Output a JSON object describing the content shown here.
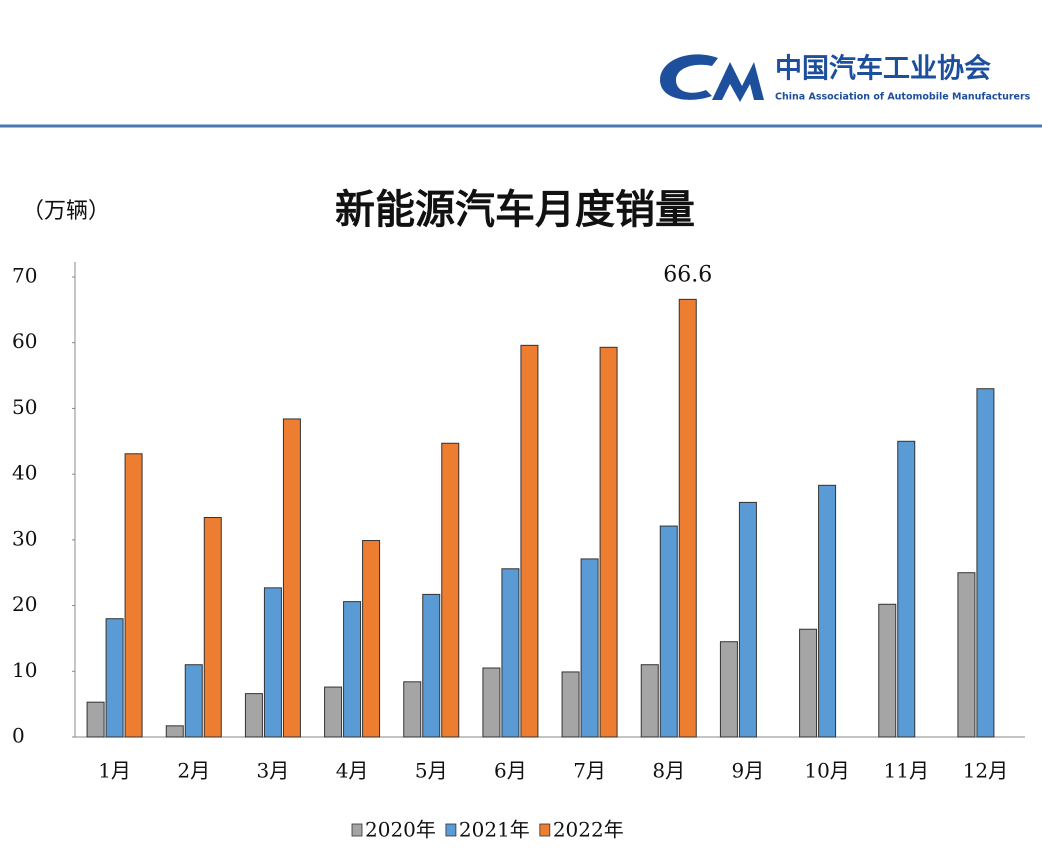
{
  "header": {
    "org_name": "中国汽车工业协会",
    "org_name_en": "China Association of Automobile Manufacturers"
  },
  "chart_data": {
    "type": "bar",
    "title": "新能源汽车月度销量",
    "y_label": "（万辆）",
    "categories": [
      "1月",
      "2月",
      "3月",
      "4月",
      "5月",
      "6月",
      "7月",
      "8月",
      "9月",
      "10月",
      "11月",
      "12月"
    ],
    "series": [
      {
        "name": "2020年",
        "color": "#a5a5a5",
        "values": [
          5.3,
          1.7,
          6.6,
          7.6,
          8.4,
          10.5,
          9.9,
          11,
          14.5,
          16.4,
          20.2,
          25
        ]
      },
      {
        "name": "2021年",
        "color": "#5b9bd5",
        "values": [
          18,
          11,
          22.7,
          20.6,
          21.7,
          25.6,
          27.1,
          32.1,
          35.7,
          38.3,
          45,
          53
        ]
      },
      {
        "name": "2022年",
        "color": "#ed7d31",
        "values": [
          43.1,
          33.4,
          48.4,
          29.9,
          44.7,
          59.6,
          59.3,
          66.6,
          null,
          null,
          null,
          null
        ],
        "value_labels": [
          null,
          null,
          null,
          null,
          null,
          null,
          null,
          "66.6",
          null,
          null,
          null,
          null
        ]
      }
    ],
    "ylim": [
      0,
      70
    ],
    "yticks": [
      0,
      10,
      20,
      30,
      40,
      50,
      60,
      70
    ],
    "grid": false,
    "legend": "bottom"
  }
}
